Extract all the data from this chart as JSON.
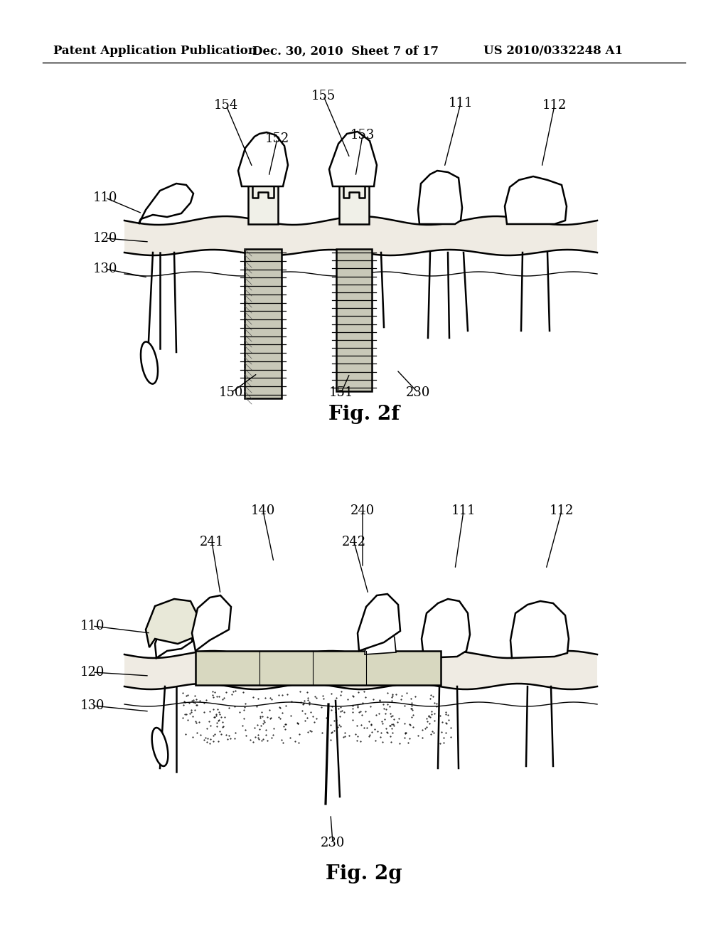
{
  "background_color": "#ffffff",
  "header_left": "Patent Application Publication",
  "header_mid": "Dec. 30, 2010  Sheet 7 of 17",
  "header_right": "US 2010/0332248 A1",
  "fig_label_2f": "Fig. 2f",
  "fig_label_2g": "Fig. 2g",
  "fig_label_fontsize": 20,
  "header_fontsize": 12,
  "annotation_fontsize": 13
}
